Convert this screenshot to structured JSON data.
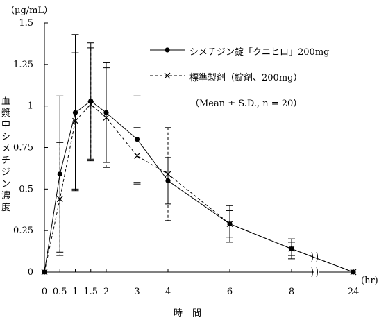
{
  "chart_data": {
    "type": "line",
    "unit_label": "（μg/mL）",
    "ylabel": "血漿中シメチジン濃度",
    "xlabel": "時間",
    "x_unit": "(hr)",
    "x": [
      0,
      0.5,
      1,
      1.5,
      2,
      3,
      4,
      6,
      8,
      24
    ],
    "x_tick_labels": [
      "0",
      "0.5",
      "1",
      "1.5",
      "2",
      "3",
      "4",
      "6",
      "8",
      "24"
    ],
    "y_ticks": [
      0,
      0.25,
      0.5,
      0.75,
      1,
      1.25,
      1.5
    ],
    "y_tick_labels": [
      "0",
      "0.25",
      "0.5",
      "0.75",
      "1",
      "1.25",
      "1.5"
    ],
    "ylim": [
      0,
      1.5
    ],
    "axis_break": "between 8 and 24",
    "series": [
      {
        "name": "シメチジン錠「クニヒロ」200mg",
        "marker": "filled-circle",
        "line": "solid",
        "values": [
          0,
          0.59,
          0.96,
          1.03,
          0.96,
          0.8,
          0.55,
          0.29,
          0.14,
          0
        ],
        "sd": [
          0,
          0.47,
          0.47,
          0.35,
          0.3,
          0.26,
          0.14,
          0.11,
          0.06,
          0
        ]
      },
      {
        "name": "標準製剤（錠剤、200mg）",
        "marker": "cross",
        "line": "dashed",
        "values": [
          0,
          0.44,
          0.91,
          1.01,
          0.93,
          0.7,
          0.59,
          0.29,
          0.14,
          0
        ],
        "sd": [
          0,
          0.34,
          0.41,
          0.34,
          0.3,
          0.17,
          0.28,
          0.08,
          0.04,
          0
        ]
      }
    ],
    "note": "（Mean ± S.D., n = 20）",
    "legend_position": "top-right"
  }
}
